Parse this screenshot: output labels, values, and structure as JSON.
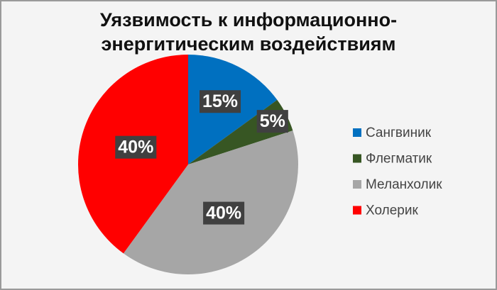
{
  "chart_data": {
    "type": "pie",
    "title": [
      "Уязвимость к информационно-",
      "энергитическим воздействиям"
    ],
    "categories": [
      "Сангвиник",
      "Флегматик",
      "Меланхолик",
      "Холерик"
    ],
    "values": [
      15,
      5,
      40,
      40
    ],
    "value_labels": [
      "15%",
      "5%",
      "40%",
      "40%"
    ],
    "colors": [
      "#0070c0",
      "#375623",
      "#a6a6a6",
      "#ff0000"
    ],
    "legend": "right"
  }
}
